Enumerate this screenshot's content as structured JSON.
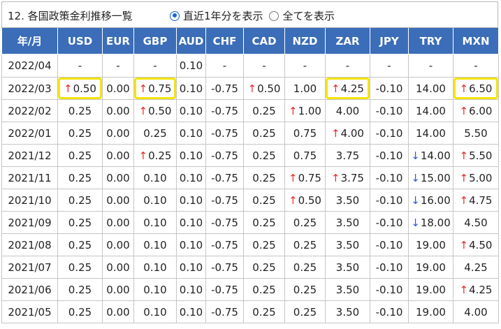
{
  "header": {
    "title": "12. 各国政策金利推移一覧",
    "radios": [
      {
        "label": "直近1年分を表示",
        "checked": true
      },
      {
        "label": "全てを表示",
        "checked": false
      }
    ]
  },
  "table": {
    "columns": [
      "年/月",
      "USD",
      "EUR",
      "GBP",
      "AUD",
      "CHF",
      "CAD",
      "NZD",
      "ZAR",
      "JPY",
      "TRY",
      "MXN"
    ],
    "rows": [
      {
        "cells": [
          {
            "v": "2022/04"
          },
          {
            "v": "-"
          },
          {
            "v": "-"
          },
          {
            "v": "-"
          },
          {
            "v": "0.10"
          },
          {
            "v": "-"
          },
          {
            "v": "-"
          },
          {
            "v": "-"
          },
          {
            "v": "-"
          },
          {
            "v": "-"
          },
          {
            "v": "-"
          },
          {
            "v": "-"
          }
        ]
      },
      {
        "cells": [
          {
            "v": "2022/03"
          },
          {
            "v": "0.50",
            "a": "up",
            "hl": true
          },
          {
            "v": "0.00"
          },
          {
            "v": "0.75",
            "a": "up",
            "hl": true
          },
          {
            "v": "0.10"
          },
          {
            "v": "-0.75"
          },
          {
            "v": "0.50",
            "a": "up"
          },
          {
            "v": "1.00"
          },
          {
            "v": "4.25",
            "a": "up",
            "hl": true
          },
          {
            "v": "-0.10"
          },
          {
            "v": "14.00"
          },
          {
            "v": "6.50",
            "a": "up",
            "hl": true
          }
        ]
      },
      {
        "cells": [
          {
            "v": "2022/02"
          },
          {
            "v": "0.25"
          },
          {
            "v": "0.00"
          },
          {
            "v": "0.50",
            "a": "up"
          },
          {
            "v": "0.10"
          },
          {
            "v": "-0.75"
          },
          {
            "v": "0.25"
          },
          {
            "v": "1.00",
            "a": "up"
          },
          {
            "v": "4.00"
          },
          {
            "v": "-0.10"
          },
          {
            "v": "14.00"
          },
          {
            "v": "6.00",
            "a": "up"
          }
        ]
      },
      {
        "cells": [
          {
            "v": "2022/01"
          },
          {
            "v": "0.25"
          },
          {
            "v": "0.00"
          },
          {
            "v": "0.25"
          },
          {
            "v": "0.10"
          },
          {
            "v": "-0.75"
          },
          {
            "v": "0.25"
          },
          {
            "v": "0.75"
          },
          {
            "v": "4.00",
            "a": "up"
          },
          {
            "v": "-0.10"
          },
          {
            "v": "14.00"
          },
          {
            "v": "5.50"
          }
        ]
      },
      {
        "cells": [
          {
            "v": "2021/12"
          },
          {
            "v": "0.25"
          },
          {
            "v": "0.00"
          },
          {
            "v": "0.25",
            "a": "up"
          },
          {
            "v": "0.10"
          },
          {
            "v": "-0.75"
          },
          {
            "v": "0.25"
          },
          {
            "v": "0.75"
          },
          {
            "v": "3.75"
          },
          {
            "v": "-0.10"
          },
          {
            "v": "14.00",
            "a": "down"
          },
          {
            "v": "5.50",
            "a": "up"
          }
        ]
      },
      {
        "cells": [
          {
            "v": "2021/11"
          },
          {
            "v": "0.25"
          },
          {
            "v": "0.00"
          },
          {
            "v": "0.10"
          },
          {
            "v": "0.10"
          },
          {
            "v": "-0.75"
          },
          {
            "v": "0.25"
          },
          {
            "v": "0.75",
            "a": "up"
          },
          {
            "v": "3.75",
            "a": "up"
          },
          {
            "v": "-0.10"
          },
          {
            "v": "15.00",
            "a": "down"
          },
          {
            "v": "5.00",
            "a": "up"
          }
        ]
      },
      {
        "cells": [
          {
            "v": "2021/10"
          },
          {
            "v": "0.25"
          },
          {
            "v": "0.00"
          },
          {
            "v": "0.10"
          },
          {
            "v": "0.10"
          },
          {
            "v": "-0.75"
          },
          {
            "v": "0.25"
          },
          {
            "v": "0.50",
            "a": "up"
          },
          {
            "v": "3.50"
          },
          {
            "v": "-0.10"
          },
          {
            "v": "16.00",
            "a": "down"
          },
          {
            "v": "4.75",
            "a": "up"
          }
        ]
      },
      {
        "cells": [
          {
            "v": "2021/09"
          },
          {
            "v": "0.25"
          },
          {
            "v": "0.00"
          },
          {
            "v": "0.10"
          },
          {
            "v": "0.10"
          },
          {
            "v": "-0.75"
          },
          {
            "v": "0.25"
          },
          {
            "v": "0.25"
          },
          {
            "v": "3.50"
          },
          {
            "v": "-0.10"
          },
          {
            "v": "18.00",
            "a": "down"
          },
          {
            "v": "4.50"
          }
        ]
      },
      {
        "cells": [
          {
            "v": "2021/08"
          },
          {
            "v": "0.25"
          },
          {
            "v": "0.00"
          },
          {
            "v": "0.10"
          },
          {
            "v": "0.10"
          },
          {
            "v": "-0.75"
          },
          {
            "v": "0.25"
          },
          {
            "v": "0.25"
          },
          {
            "v": "3.50"
          },
          {
            "v": "-0.10"
          },
          {
            "v": "19.00"
          },
          {
            "v": "4.50",
            "a": "up"
          }
        ]
      },
      {
        "cells": [
          {
            "v": "2021/07"
          },
          {
            "v": "0.25"
          },
          {
            "v": "0.00"
          },
          {
            "v": "0.10"
          },
          {
            "v": "0.10"
          },
          {
            "v": "-0.75"
          },
          {
            "v": "0.25"
          },
          {
            "v": "0.25"
          },
          {
            "v": "3.50"
          },
          {
            "v": "-0.10"
          },
          {
            "v": "19.00"
          },
          {
            "v": "4.25"
          }
        ]
      },
      {
        "cells": [
          {
            "v": "2021/06"
          },
          {
            "v": "0.25"
          },
          {
            "v": "0.00"
          },
          {
            "v": "0.10"
          },
          {
            "v": "0.10"
          },
          {
            "v": "-0.75"
          },
          {
            "v": "0.25"
          },
          {
            "v": "0.25"
          },
          {
            "v": "3.50"
          },
          {
            "v": "-0.10"
          },
          {
            "v": "19.00"
          },
          {
            "v": "4.25",
            "a": "up"
          }
        ]
      },
      {
        "cells": [
          {
            "v": "2021/05"
          },
          {
            "v": "0.25"
          },
          {
            "v": "0.00"
          },
          {
            "v": "0.10"
          },
          {
            "v": "0.10"
          },
          {
            "v": "-0.75"
          },
          {
            "v": "0.25"
          },
          {
            "v": "0.25"
          },
          {
            "v": "3.50"
          },
          {
            "v": "-0.10"
          },
          {
            "v": "19.00"
          },
          {
            "v": "4.00"
          }
        ]
      }
    ]
  },
  "glyphs": {
    "up": "↑",
    "down": "↓"
  },
  "colors": {
    "header_bg": "#3b6db8",
    "header_text": "#ffffff",
    "up_arrow": "#e8282a",
    "down_arrow": "#2b57d8",
    "highlight": "#f4e40a",
    "radio_accent": "#1a64d6"
  }
}
